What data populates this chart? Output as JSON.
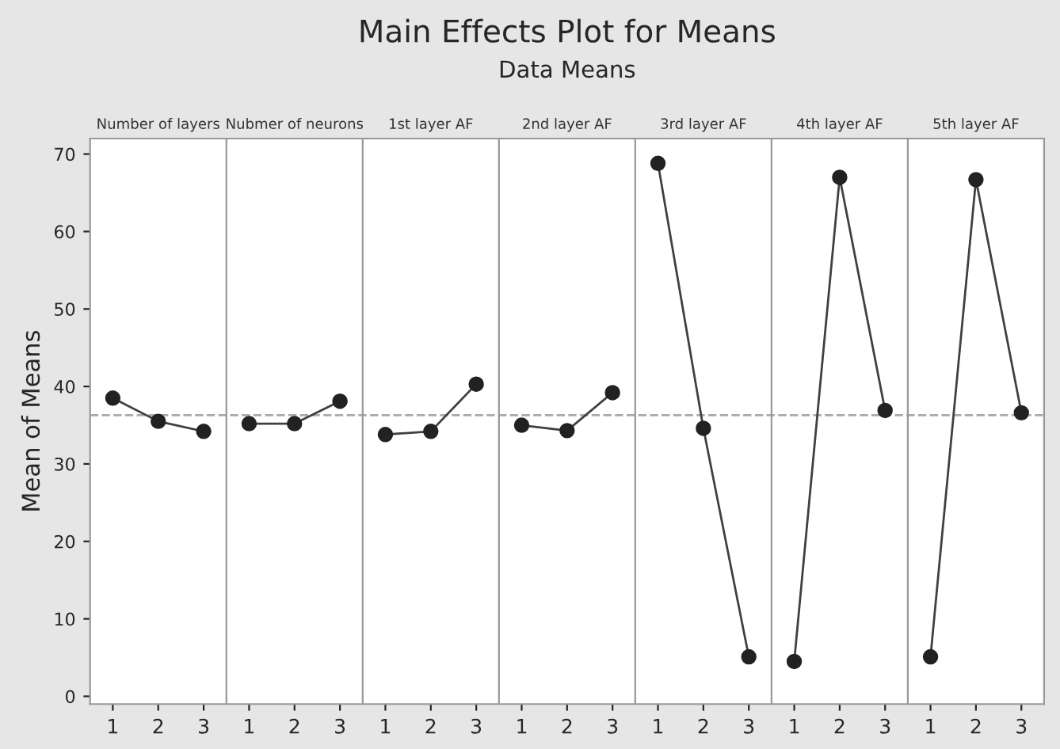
{
  "chart_data": {
    "type": "line",
    "title": "Main Effects Plot for Means",
    "subtitle": "Data Means",
    "ylabel": "Mean of Means",
    "categories": [
      "1",
      "2",
      "3",
      "1",
      "2",
      "3",
      "1",
      "2",
      "3",
      "1",
      "2",
      "3",
      "1",
      "2",
      "3",
      "1",
      "2",
      "3",
      "1",
      "2",
      "3"
    ],
    "series": [
      {
        "color": "#404040",
        "values": [
          38.5,
          35.5,
          34.2,
          null,
          null,
          null,
          null,
          null,
          null,
          null,
          null,
          null,
          null,
          null,
          null,
          null,
          null,
          null,
          null,
          null,
          null
        ]
      },
      {
        "color": "#404040",
        "values": [
          null,
          null,
          null,
          35.2,
          35.2,
          38.1,
          null,
          null,
          null,
          null,
          null,
          null,
          null,
          null,
          null,
          null,
          null,
          null,
          null,
          null,
          null
        ]
      },
      {
        "color": "#404040",
        "values": [
          null,
          null,
          null,
          null,
          null,
          null,
          33.8,
          34.2,
          40.3,
          null,
          null,
          null,
          null,
          null,
          null,
          null,
          null,
          null,
          null,
          null,
          null
        ]
      },
      {
        "color": "#404040",
        "values": [
          null,
          null,
          null,
          null,
          null,
          null,
          null,
          null,
          null,
          35.0,
          34.3,
          39.2,
          null,
          null,
          null,
          null,
          null,
          null,
          null,
          null,
          null
        ]
      },
      {
        "color": "#404040",
        "values": [
          null,
          null,
          null,
          null,
          null,
          null,
          null,
          null,
          null,
          null,
          null,
          null,
          68.8,
          34.6,
          5.1,
          null,
          null,
          null,
          null,
          null,
          null
        ]
      },
      {
        "color": "#404040",
        "values": [
          null,
          null,
          null,
          null,
          null,
          null,
          null,
          null,
          null,
          null,
          null,
          null,
          null,
          null,
          null,
          4.5,
          67.0,
          36.9,
          null,
          null,
          null
        ]
      },
      {
        "color": "#404040",
        "values": [
          null,
          null,
          null,
          null,
          null,
          null,
          null,
          null,
          null,
          null,
          null,
          null,
          null,
          null,
          null,
          null,
          null,
          null,
          5.1,
          66.7,
          36.6
        ]
      }
    ],
    "ylim": [
      -1,
      72
    ],
    "yticks": [
      0,
      10,
      20,
      30,
      40,
      50,
      60,
      70
    ],
    "marker": "circle",
    "annotations": [
      "Number of layers",
      "Nubmer of neurons",
      "1st layer AF",
      "2nd layer AF",
      "3rd layer AF",
      "4th layer AF",
      "5th layer AF"
    ],
    "ref_lines": [
      {
        "axis": "y",
        "value": 36.3,
        "color": "#aaaaaa",
        "line_style": "dashed"
      }
    ]
  }
}
